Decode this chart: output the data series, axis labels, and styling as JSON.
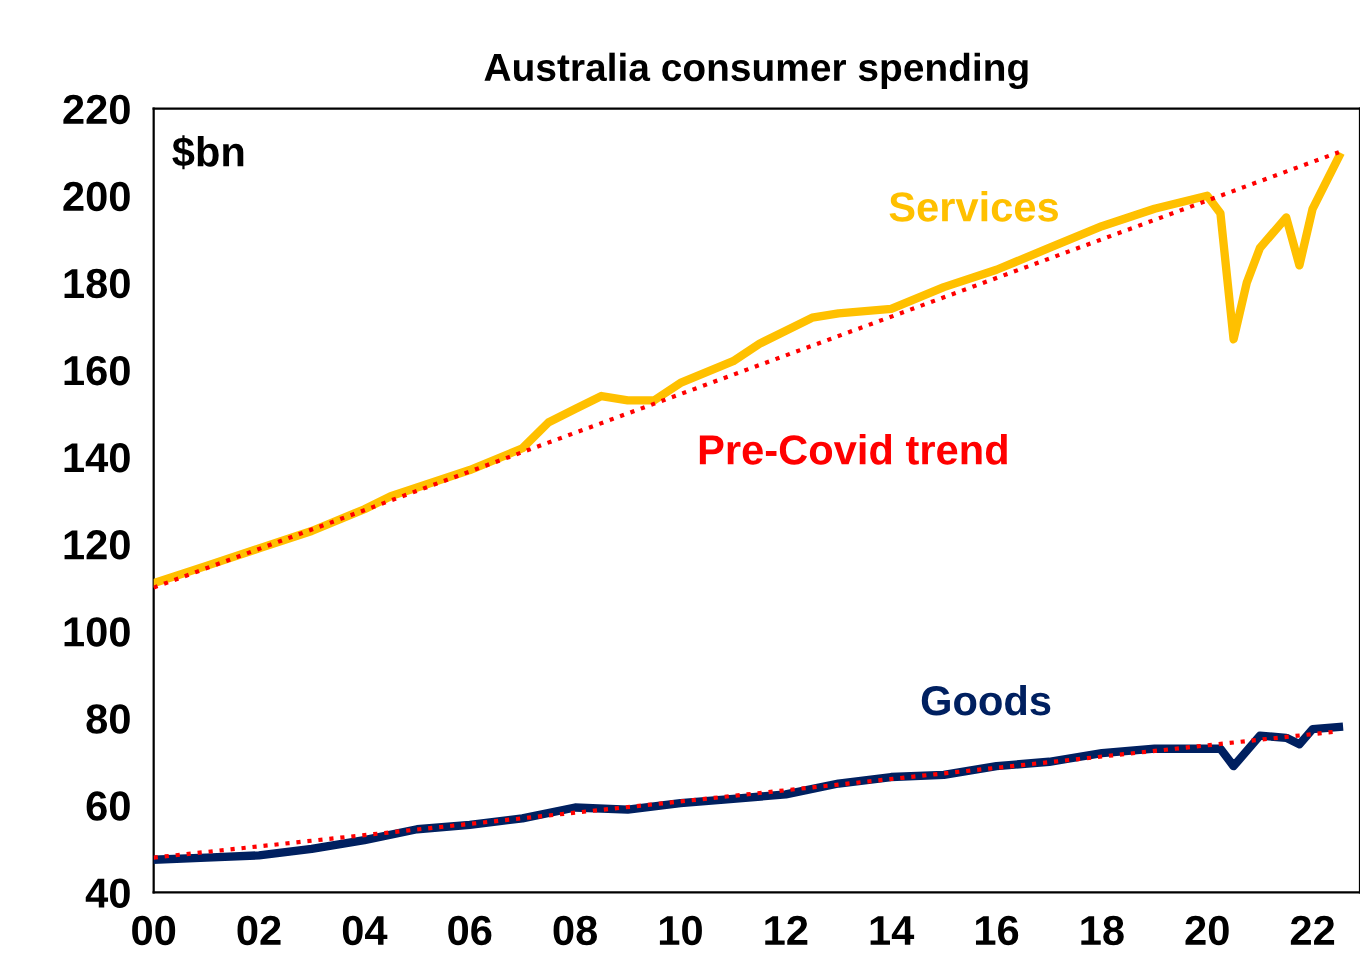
{
  "chart_data": {
    "type": "line",
    "title": "Australia consumer spending",
    "annotations": [
      "$bn"
    ],
    "xlim": [
      2000,
      2022.9
    ],
    "ylim": [
      40,
      220
    ],
    "xticks": [
      {
        "value": 2000,
        "label": "00"
      },
      {
        "value": 2002,
        "label": "02"
      },
      {
        "value": 2004,
        "label": "04"
      },
      {
        "value": 2006,
        "label": "06"
      },
      {
        "value": 2008,
        "label": "08"
      },
      {
        "value": 2010,
        "label": "10"
      },
      {
        "value": 2012,
        "label": "12"
      },
      {
        "value": 2014,
        "label": "14"
      },
      {
        "value": 2016,
        "label": "16"
      },
      {
        "value": 2018,
        "label": "18"
      },
      {
        "value": 2020,
        "label": "20"
      },
      {
        "value": 2022,
        "label": "22"
      }
    ],
    "yticks": [
      40,
      60,
      80,
      100,
      120,
      140,
      160,
      180,
      200,
      220
    ],
    "grid": false,
    "legend": false,
    "marker": "none",
    "series": [
      {
        "name": "Services",
        "color": "#ffc000",
        "line_style": "solid",
        "x": [
          2000,
          2001,
          2002,
          2003,
          2004,
          2004.5,
          2005,
          2006,
          2007,
          2007.5,
          2008,
          2008.5,
          2009,
          2009.5,
          2010,
          2011,
          2011.5,
          2012,
          2012.5,
          2013,
          2014,
          2015,
          2016,
          2017,
          2018,
          2018.5,
          2019,
          2020,
          2020.25,
          2020.5,
          2020.75,
          2021,
          2021.5,
          2021.75,
          2022,
          2022.5
        ],
        "values": [
          111,
          115,
          119,
          123,
          128,
          131,
          133,
          137,
          142,
          148,
          151,
          154,
          153,
          153,
          157,
          162,
          166,
          169,
          172,
          173,
          174,
          179,
          183,
          188,
          193,
          195,
          197,
          200,
          196,
          167,
          180,
          188,
          195,
          184,
          197,
          209
        ]
      },
      {
        "name": "Goods",
        "color": "#002060",
        "line_style": "solid",
        "x": [
          2000,
          2001,
          2002,
          2003,
          2004,
          2005,
          2006,
          2007,
          2008,
          2009,
          2010,
          2011,
          2012,
          2013,
          2014,
          2015,
          2016,
          2017,
          2018,
          2019,
          2020,
          2020.25,
          2020.5,
          2021,
          2021.5,
          2021.75,
          2022,
          2022.5
        ],
        "values": [
          47.5,
          48,
          48.5,
          50,
          52,
          54.5,
          55.5,
          57,
          59.5,
          59,
          60.5,
          61.5,
          62.5,
          65,
          66.5,
          67,
          69,
          70,
          72,
          73,
          73,
          73,
          69,
          76,
          75.5,
          74,
          77.5,
          78
        ]
      },
      {
        "name": "Pre-Covid trend",
        "color": "#ff0000",
        "line_style": "dotted",
        "x": [
          2000,
          2022.5
        ],
        "values": [
          110,
          210
        ]
      },
      {
        "color": "#ff0000",
        "line_style": "dotted",
        "x": [
          2000,
          2022.5
        ],
        "values": [
          48,
          77
        ]
      }
    ]
  }
}
